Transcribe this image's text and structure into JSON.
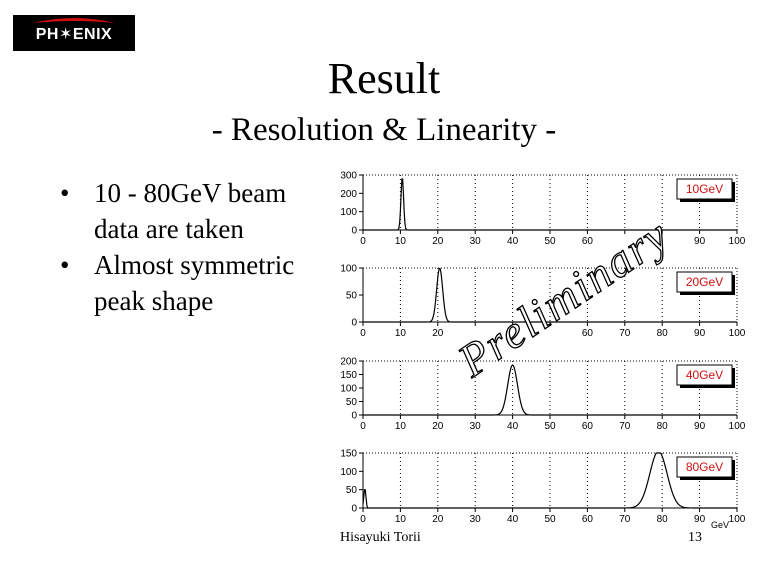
{
  "logo": {
    "text": "PH✶ENIX",
    "colors": {
      "background": "#000000",
      "accent": "#d01010",
      "text": "#ffffff"
    }
  },
  "title": "Result",
  "subtitle": "- Resolution & Linearity -",
  "bullets": [
    {
      "marker": "•",
      "text": "10 - 80GeV beam data are taken"
    },
    {
      "marker": "•",
      "text": "Almost symmetric peak shape"
    }
  ],
  "watermark": "Preliminary",
  "footer": {
    "author": "Hisayuki Torii",
    "page": "13"
  },
  "chart_data": [
    {
      "type": "line",
      "title": "",
      "legend": "10GeV",
      "xlabel": "",
      "ylabel": "",
      "xlim": [
        0,
        100
      ],
      "ylim": [
        0,
        300
      ],
      "xticks": [
        0,
        10,
        20,
        30,
        40,
        50,
        60,
        70,
        80,
        90,
        100
      ],
      "xtick_labels": [
        "0",
        "10",
        "20",
        "30",
        "40",
        "50",
        "60",
        "",
        "",
        "90",
        "100"
      ],
      "yticks": [
        0,
        100,
        200,
        300
      ],
      "peak": {
        "center": 10.5,
        "sigma": 0.35,
        "height": 290
      },
      "baseline": 0
    },
    {
      "type": "line",
      "title": "",
      "legend": "20GeV",
      "xlabel": "",
      "ylabel": "",
      "xlim": [
        0,
        100
      ],
      "ylim": [
        0,
        100
      ],
      "xticks": [
        0,
        10,
        20,
        30,
        40,
        50,
        60,
        70,
        80,
        90,
        100
      ],
      "xtick_labels": [
        "0",
        "10",
        "20",
        "",
        "",
        "",
        "60",
        "70",
        "80",
        "90",
        "100"
      ],
      "yticks": [
        0,
        50,
        100
      ],
      "peak": {
        "center": 20.5,
        "sigma": 0.8,
        "height": 100
      },
      "baseline": 0
    },
    {
      "type": "line",
      "title": "",
      "legend": "40GeV",
      "xlabel": "",
      "ylabel": "",
      "xlim": [
        0,
        100
      ],
      "ylim": [
        0,
        200
      ],
      "xticks": [
        0,
        10,
        20,
        30,
        40,
        50,
        60,
        70,
        80,
        90,
        100
      ],
      "xtick_labels": [
        "0",
        "10",
        "20",
        "30",
        "40",
        "50",
        "60",
        "70",
        "80",
        "90",
        "100"
      ],
      "yticks": [
        0,
        50,
        100,
        150,
        200
      ],
      "peak": {
        "center": 40,
        "sigma": 1.3,
        "height": 185
      },
      "baseline": 0
    },
    {
      "type": "line",
      "title": "",
      "legend": "80GeV",
      "xlabel": "GeV",
      "ylabel": "",
      "xlim": [
        0,
        100
      ],
      "ylim": [
        0,
        150
      ],
      "xticks": [
        0,
        10,
        20,
        30,
        40,
        50,
        60,
        70,
        80,
        90,
        100
      ],
      "xtick_labels": [
        "0",
        "10",
        "20",
        "30",
        "40",
        "50",
        "60",
        "70",
        "80",
        "90",
        "100"
      ],
      "yticks": [
        0,
        50,
        100,
        150
      ],
      "peak": {
        "center": 79,
        "sigma": 2.3,
        "height": 155
      },
      "baseline": 0,
      "spike": {
        "x": 0.5,
        "y": 60
      }
    }
  ]
}
